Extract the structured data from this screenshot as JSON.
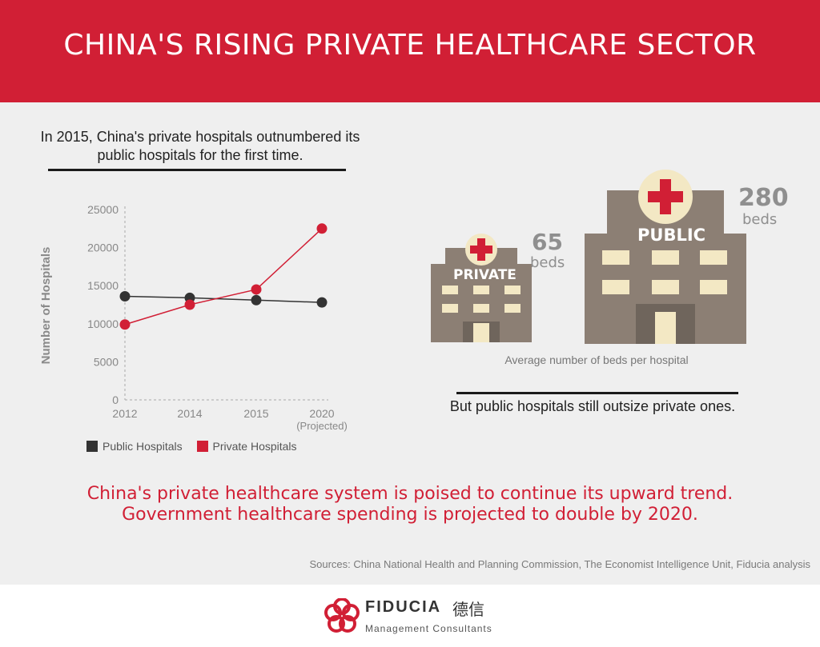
{
  "header": {
    "title": "CHINA'S RISING PRIVATE HEALTHCARE SECTOR"
  },
  "intro": {
    "line1": "In 2015, China's private hospitals outnumbered its",
    "line2": "public hospitals for the first time."
  },
  "chart_data": {
    "type": "line",
    "title": "",
    "xlabel": "",
    "ylabel": "Number of Hospitals",
    "categories": [
      "2012",
      "2014",
      "2015",
      "2020"
    ],
    "category_sublabels": [
      "",
      "",
      "",
      "(Projected)"
    ],
    "yticks": [
      "0",
      "5000",
      "10000",
      "15000",
      "20000",
      "25000"
    ],
    "ylim": [
      0,
      25000
    ],
    "grid": false,
    "legend": "bottom",
    "series": [
      {
        "name": "Public Hospitals",
        "color": "#333333",
        "values": [
          13600,
          13400,
          13100,
          12800
        ]
      },
      {
        "name": "Private Hospitals",
        "color": "#d11f35",
        "values": [
          9900,
          12500,
          14500,
          22500
        ]
      }
    ]
  },
  "beds": {
    "private": {
      "label": "PRIVATE",
      "number": "65",
      "unit": "beds"
    },
    "public": {
      "label": "PUBLIC",
      "number": "280",
      "unit": "beds"
    },
    "caption": "Average number of beds per hospital"
  },
  "outro": "But public hospitals still outsize private ones.",
  "callout": {
    "line1": "China's private healthcare system is poised to continue its upward trend.",
    "line2": "Government healthcare spending is projected to double by 2020."
  },
  "sources": "Sources: China National Health and Planning Commission, The Economist Intelligence Unit, Fiducia analysis",
  "logo": {
    "name": "FIDUCIA",
    "chinese": "德信",
    "subtitle": "Management Consultants"
  },
  "colors": {
    "brand_red": "#d11f35",
    "building": "#8c7f74",
    "window": "#f3e8c4",
    "dark": "#333333"
  }
}
